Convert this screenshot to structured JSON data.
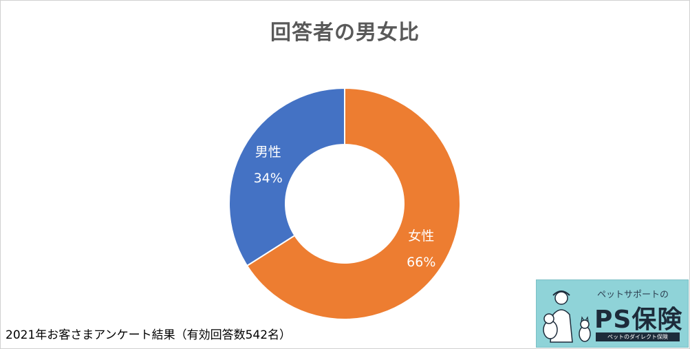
{
  "title": "回答者の男女比",
  "footnote": "2021年お客さまアンケート結果（有効回答数542名）",
  "logo": {
    "tagline": "ペットサポートの",
    "main": "PS保険",
    "subline": "ペットのダイレクト保険"
  },
  "chart_data": {
    "type": "pie",
    "title": "回答者の男女比",
    "donut": true,
    "slices": [
      {
        "name": "女性",
        "value": 66,
        "label": "66%",
        "color": "#ED7D31"
      },
      {
        "name": "男性",
        "value": 34,
        "label": "34%",
        "color": "#4472C4"
      }
    ],
    "start": "top",
    "direction": "clockwise",
    "legend": "none"
  }
}
